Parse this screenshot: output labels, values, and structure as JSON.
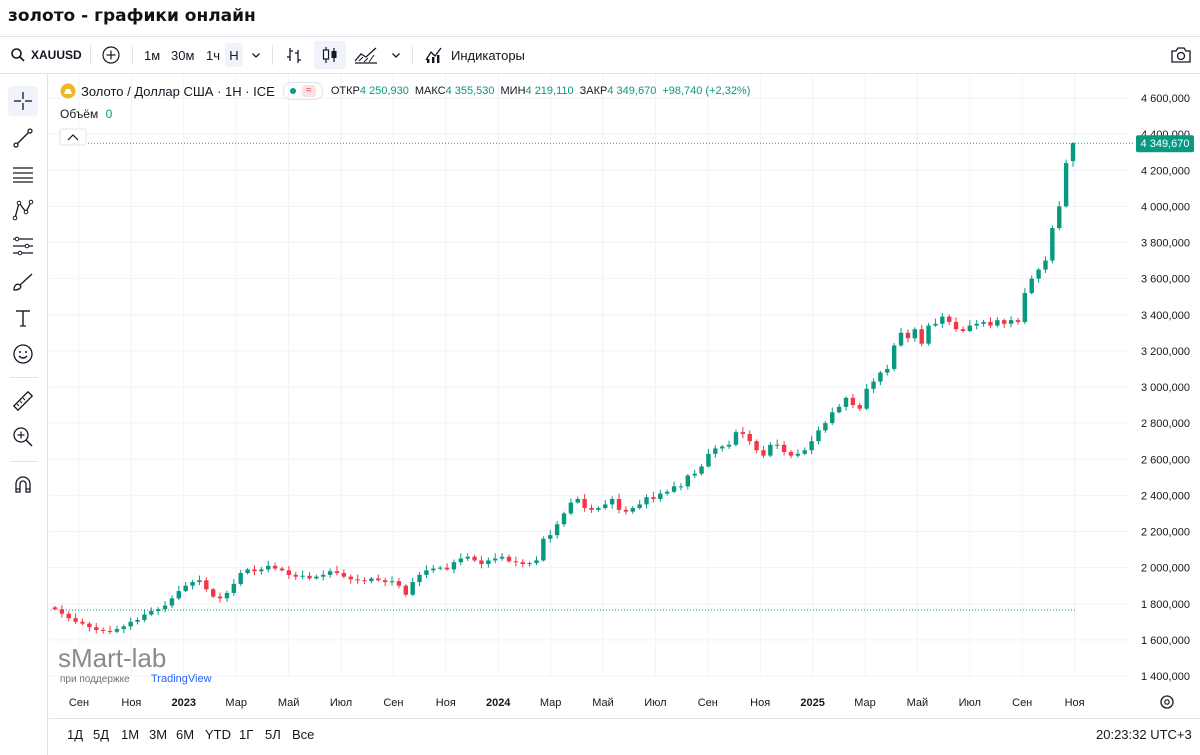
{
  "page_title": "золото - графики онлайн",
  "toolbar": {
    "symbol": "XAUUSD",
    "intervals": [
      "1м",
      "30м",
      "1ч",
      "Н"
    ],
    "indicators_label": "Индикаторы"
  },
  "legend": {
    "instrument": "Золото / Доллар США · 1Н · ICE",
    "open_label": "ОТКР",
    "open_value": "4 250,930",
    "high_label": "МАКС",
    "high_value": "4 355,530",
    "low_label": "МИН",
    "low_value": "4 219,110",
    "close_label": "ЗАКР",
    "close_value": "4 349,670",
    "change": "+98,740 (+2,32%)",
    "volume_label": "Объём",
    "volume_value": "0"
  },
  "price_axis": {
    "ticks": [
      "4 600,000",
      "4 400,000",
      "4 200,000",
      "4 000,000",
      "3 800,000",
      "3 600,000",
      "3 400,000",
      "3 200,000",
      "3 000,000",
      "2 800,000",
      "2 600,000",
      "2 400,000",
      "2 200,000",
      "2 000,000",
      "1 800,000",
      "1 600,000",
      "1 400,000"
    ],
    "last_price": "4 349,670"
  },
  "time_axis": {
    "labels": [
      "Сен",
      "Ноя",
      "2023",
      "Мар",
      "Май",
      "Июл",
      "Сен",
      "Ноя",
      "2024",
      "Мар",
      "Май",
      "Июл",
      "Сен",
      "Ноя",
      "2025",
      "Мар",
      "Май",
      "Июл",
      "Сен",
      "Ноя"
    ]
  },
  "watermark": {
    "brand": "sMart-lab",
    "support": "при поддержке",
    "partner": "TradingView"
  },
  "bottom": {
    "ranges": [
      "1Д",
      "5Д",
      "1М",
      "3М",
      "6М",
      "YTD",
      "1Г",
      "5Л",
      "Все"
    ],
    "clock": "20:23:32 UTC+3"
  },
  "colors": {
    "up": "#089981",
    "down": "#f23645",
    "accent": "#2962ff",
    "grid": "#f0f3fa"
  },
  "chart_data": {
    "type": "candlestick",
    "title": "Золото / Доллар США · 1Н · ICE",
    "ylim": [
      1400,
      4600
    ],
    "x_axis_ticks": [
      "Сен",
      "Ноя",
      "2023",
      "Мар",
      "Май",
      "Июл",
      "Сен",
      "Ноя",
      "2024",
      "Мар",
      "Май",
      "Июл",
      "Сен",
      "Ноя",
      "2025",
      "Мар",
      "Май",
      "Июл",
      "Сен",
      "Ноя"
    ],
    "interval": "1 week",
    "close_approx": [
      1770,
      1745,
      1720,
      1700,
      1690,
      1670,
      1655,
      1650,
      1645,
      1660,
      1675,
      1700,
      1710,
      1740,
      1760,
      1770,
      1790,
      1830,
      1870,
      1900,
      1920,
      1930,
      1880,
      1840,
      1830,
      1860,
      1910,
      1970,
      1990,
      1980,
      1990,
      2010,
      1995,
      1985,
      1960,
      1950,
      1955,
      1940,
      1950,
      1960,
      1980,
      1970,
      1950,
      1935,
      1930,
      1925,
      1940,
      1930,
      1920,
      1925,
      1900,
      1850,
      1920,
      1960,
      1985,
      1995,
      2000,
      1990,
      2030,
      2050,
      2060,
      2040,
      2020,
      2040,
      2050,
      2060,
      2035,
      2030,
      2020,
      2025,
      2040,
      2160,
      2180,
      2240,
      2300,
      2360,
      2380,
      2330,
      2320,
      2330,
      2350,
      2380,
      2320,
      2310,
      2330,
      2350,
      2390,
      2380,
      2410,
      2420,
      2450,
      2450,
      2510,
      2520,
      2560,
      2630,
      2660,
      2670,
      2680,
      2750,
      2740,
      2700,
      2650,
      2620,
      2680,
      2680,
      2640,
      2620,
      2630,
      2650,
      2700,
      2760,
      2800,
      2860,
      2890,
      2940,
      2900,
      2880,
      2990,
      3030,
      3080,
      3100,
      3230,
      3300,
      3270,
      3320,
      3240,
      3340,
      3350,
      3390,
      3360,
      3320,
      3310,
      3340,
      3350,
      3360,
      3340,
      3370,
      3350,
      3370,
      3360,
      3520,
      3600,
      3650,
      3700,
      3880,
      4000,
      4240,
      4350
    ],
    "last": 4349.67,
    "open_last": 4250.93,
    "high_last": 4355.53,
    "low_last": 4219.11
  }
}
